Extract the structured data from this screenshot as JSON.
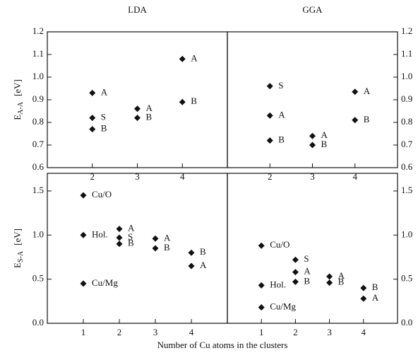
{
  "x_label": "Number of Cu atoms in the clusters",
  "chart_data": [
    {
      "type": "scatter",
      "title": "LDA",
      "ylabel": "E",
      "ylabel_sub": "A-A",
      "ylabel_unit": "[eV]",
      "x": [
        2,
        2,
        2,
        3,
        3,
        4,
        4
      ],
      "values": [
        0.93,
        0.82,
        0.77,
        0.86,
        0.82,
        1.08,
        0.89
      ],
      "labels": [
        "A",
        "S",
        "B",
        "A",
        "B",
        "A",
        "B"
      ],
      "xlim": [
        1,
        5
      ],
      "xticks": [
        2,
        3,
        4
      ],
      "ylim": [
        0.6,
        1.2
      ],
      "yticks": [
        0.6,
        0.7,
        0.8,
        0.9,
        {
          "value": 1.0,
          "label": "1.0"
        },
        1.1,
        1.2
      ],
      "color": "#111111"
    },
    {
      "type": "scatter",
      "title": "GGA",
      "x": [
        2,
        2,
        2,
        3,
        3,
        4,
        4
      ],
      "values": [
        0.96,
        0.83,
        0.72,
        0.74,
        0.7,
        0.935,
        0.81
      ],
      "labels": [
        "S",
        "A",
        "B",
        "A",
        "B",
        "A",
        "B"
      ],
      "xlim": [
        1,
        5
      ],
      "xticks": [
        2,
        3,
        4
      ],
      "ylim": [
        0.6,
        1.2
      ],
      "yticks": [
        0.6,
        0.7,
        0.8,
        0.9,
        {
          "value": 1.0,
          "label": "1.0"
        },
        1.1,
        1.2
      ],
      "color": "#111111"
    },
    {
      "type": "scatter",
      "ylabel": "E",
      "ylabel_sub": "S-A",
      "ylabel_unit": "[eV]",
      "x": [
        1,
        1,
        1,
        2,
        2,
        2,
        3,
        3,
        4,
        4
      ],
      "values": [
        1.45,
        1.0,
        0.45,
        1.07,
        0.97,
        0.9,
        0.96,
        0.85,
        0.8,
        0.65
      ],
      "labels": [
        "Cu/O",
        "Hol.",
        "Cu/Mg",
        "A",
        "S",
        "B",
        "A",
        "B",
        "B",
        "A"
      ],
      "xlim": [
        0,
        5
      ],
      "xticks": [
        1,
        2,
        3,
        4
      ],
      "ylim": [
        0,
        1.7
      ],
      "yticks": [
        {
          "value": 0,
          "label": "0.0"
        },
        0.5,
        {
          "value": 1,
          "label": "1.0"
        },
        1.5
      ],
      "color": "#111111"
    },
    {
      "type": "scatter",
      "x": [
        1,
        1,
        1,
        2,
        2,
        2,
        3,
        3,
        4,
        4
      ],
      "values": [
        0.88,
        0.43,
        0.18,
        0.72,
        0.58,
        0.47,
        0.53,
        0.46,
        0.4,
        0.28
      ],
      "labels": [
        "Cu/O",
        "Hol.",
        "Cu/Mg",
        "S",
        "A",
        "B",
        "A",
        "B",
        "B",
        "A"
      ],
      "xlim": [
        0,
        5
      ],
      "xticks": [
        1,
        2,
        3,
        4
      ],
      "ylim": [
        0,
        1.7
      ],
      "yticks": [
        {
          "value": 0,
          "label": "0.0"
        },
        0.5,
        {
          "value": 1,
          "label": "1.0"
        },
        1.5
      ],
      "color": "#111111"
    }
  ]
}
